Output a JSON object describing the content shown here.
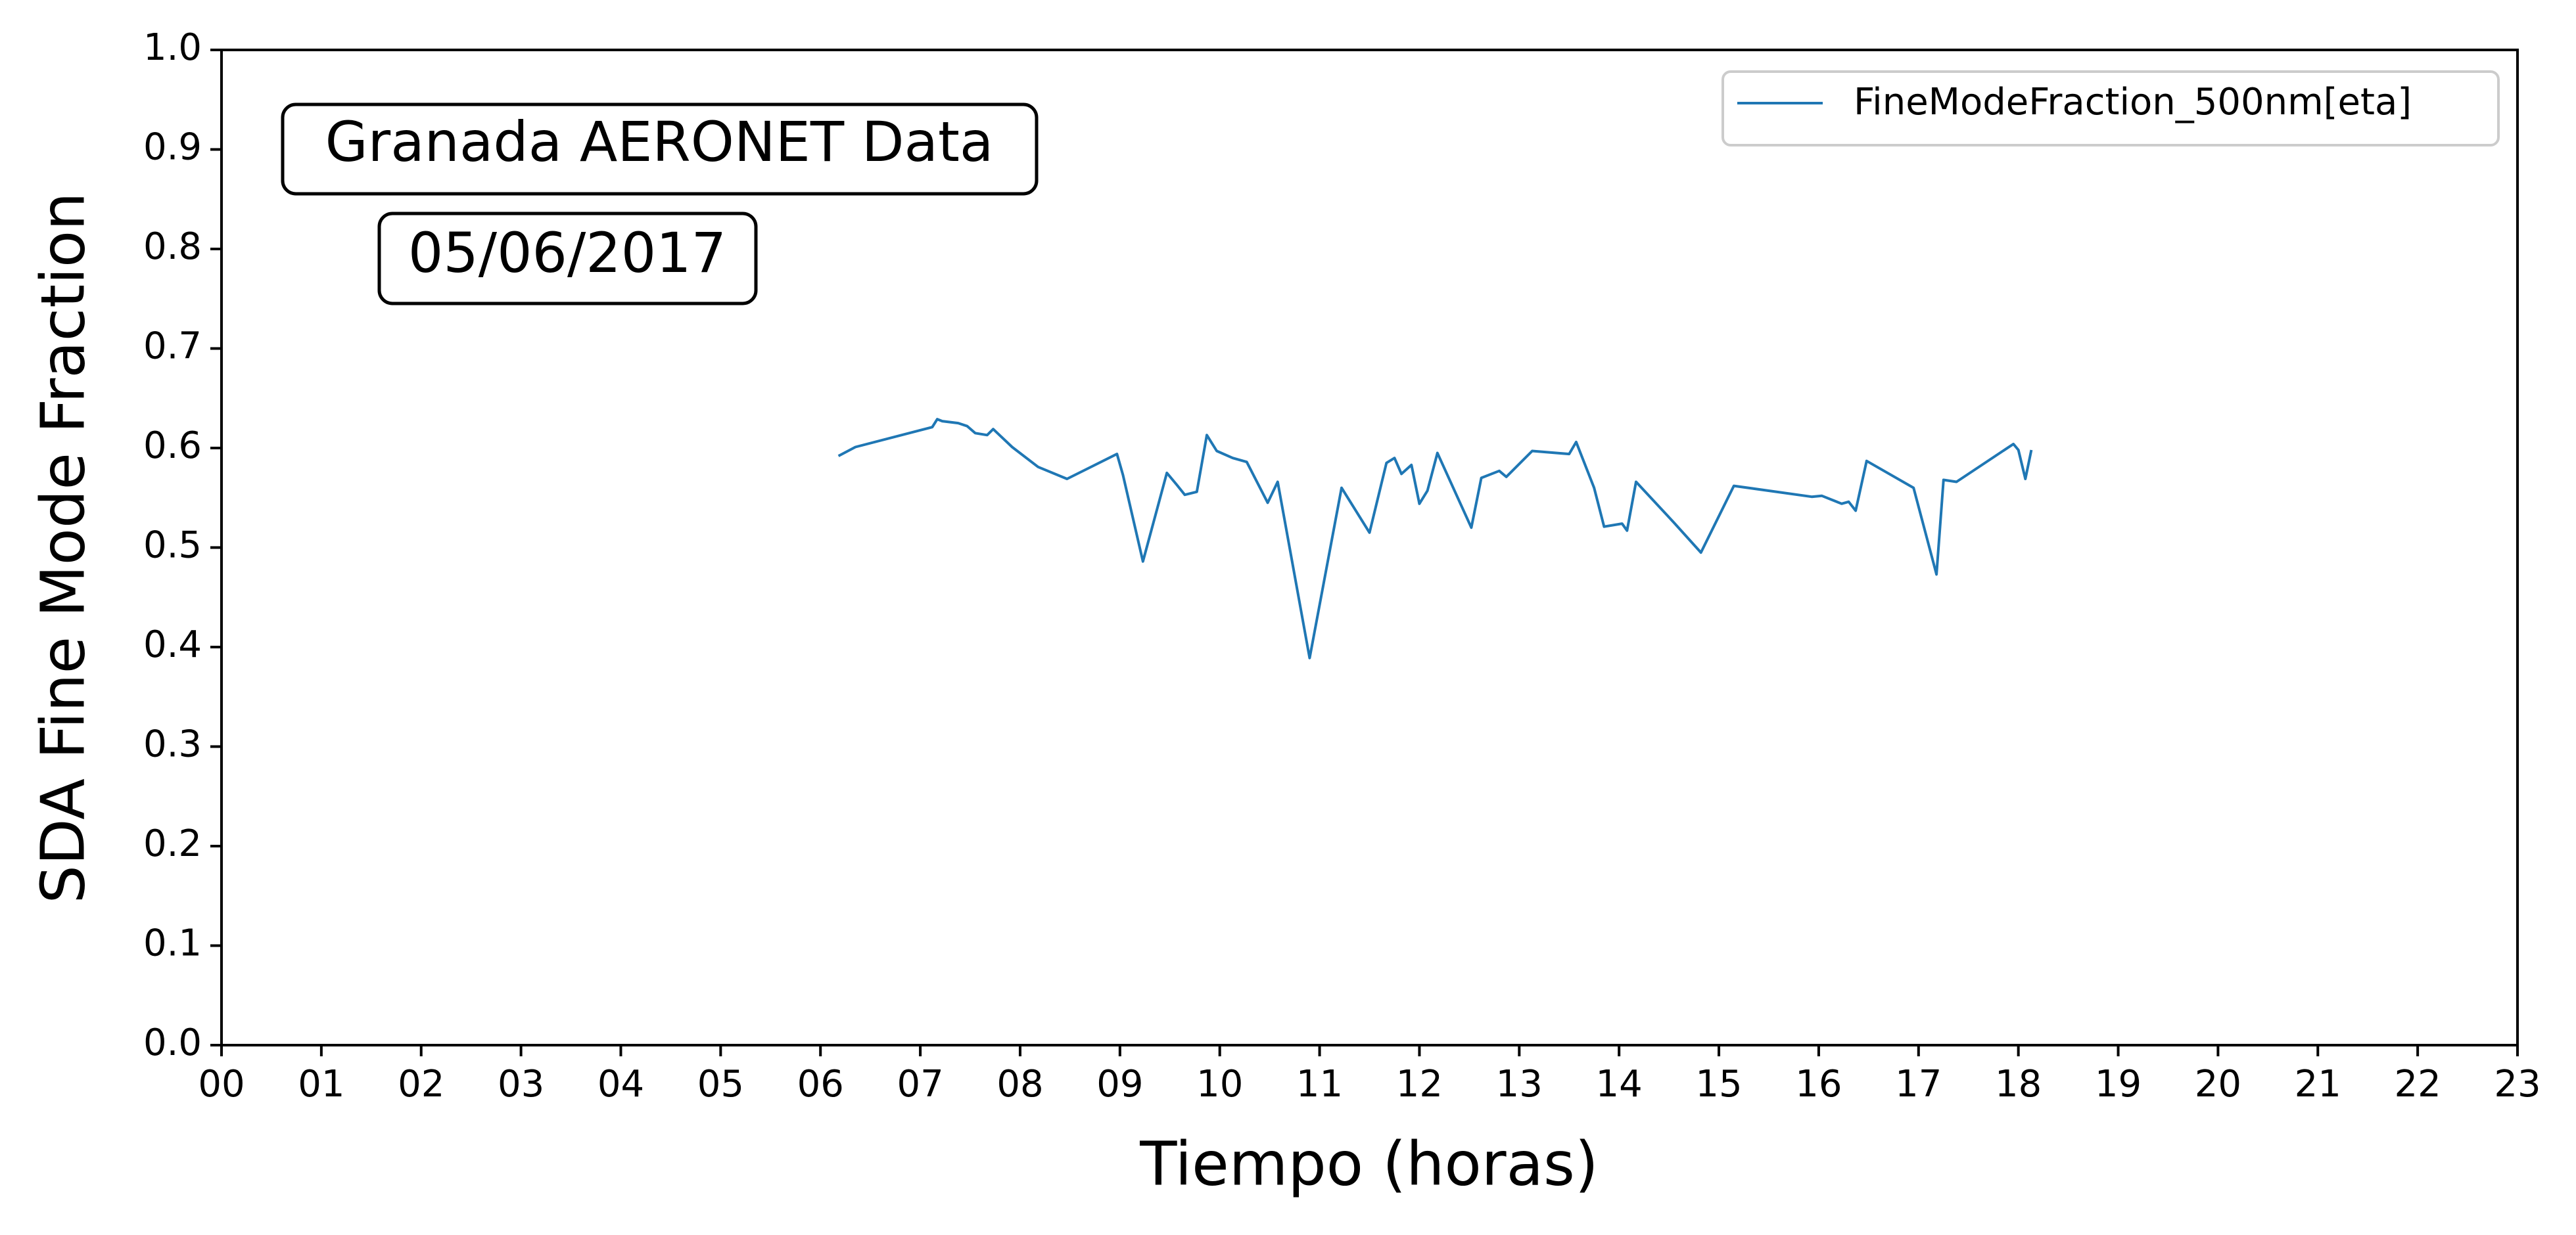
{
  "chart_data": {
    "type": "line",
    "xlabel": "Tiempo (horas)",
    "ylabel": "SDA Fine Mode Fraction",
    "xlim": [
      0,
      23
    ],
    "ylim": [
      0,
      1.0
    ],
    "x_ticks": [
      0,
      1,
      2,
      3,
      4,
      5,
      6,
      7,
      8,
      9,
      10,
      11,
      12,
      13,
      14,
      15,
      16,
      17,
      18,
      19,
      20,
      21,
      22,
      23
    ],
    "x_tick_labels": [
      "00",
      "01",
      "02",
      "03",
      "04",
      "05",
      "06",
      "07",
      "08",
      "09",
      "10",
      "11",
      "12",
      "13",
      "14",
      "15",
      "16",
      "17",
      "18",
      "19",
      "20",
      "21",
      "22",
      "23"
    ],
    "y_ticks": [
      0,
      0.1,
      0.2,
      0.3,
      0.4,
      0.5,
      0.6,
      0.7,
      0.8,
      0.9,
      1.0
    ],
    "y_tick_labels": [
      "0.0",
      "0.1",
      "0.2",
      "0.3",
      "0.4",
      "0.5",
      "0.6",
      "0.7",
      "0.8",
      "0.9",
      "1.0"
    ],
    "grid": false,
    "legend_position": "top-right",
    "annotations": [
      "Granada AERONET Data",
      "05/06/2017"
    ],
    "series": [
      {
        "name": "FineModeFraction_500nm[eta]",
        "color": "#1f77b4",
        "x": [
          6.18,
          6.35,
          7.12,
          7.17,
          7.22,
          7.38,
          7.47,
          7.55,
          7.67,
          7.73,
          7.92,
          8.18,
          8.47,
          8.97,
          9.03,
          9.23,
          9.47,
          9.57,
          9.65,
          9.77,
          9.87,
          9.97,
          10.13,
          10.27,
          10.48,
          10.58,
          10.9,
          11.22,
          11.5,
          11.67,
          11.75,
          11.82,
          11.92,
          12.0,
          12.08,
          12.18,
          12.52,
          12.62,
          12.8,
          12.87,
          13.13,
          13.5,
          13.57,
          13.75,
          13.85,
          14.03,
          14.08,
          14.17,
          14.55,
          14.82,
          15.15,
          15.93,
          16.03,
          16.23,
          16.3,
          16.37,
          16.48,
          16.95,
          17.18,
          17.25,
          17.38,
          17.95,
          18.0,
          18.07,
          18.13
        ],
        "y": [
          0.592,
          0.601,
          0.621,
          0.629,
          0.627,
          0.625,
          0.622,
          0.615,
          0.613,
          0.619,
          0.601,
          0.581,
          0.569,
          0.594,
          0.573,
          0.486,
          0.575,
          0.563,
          0.553,
          0.556,
          0.613,
          0.597,
          0.59,
          0.586,
          0.545,
          0.566,
          0.389,
          0.56,
          0.515,
          0.585,
          0.59,
          0.574,
          0.583,
          0.544,
          0.557,
          0.595,
          0.52,
          0.57,
          0.577,
          0.571,
          0.597,
          0.594,
          0.606,
          0.56,
          0.521,
          0.524,
          0.517,
          0.566,
          0.525,
          0.495,
          0.562,
          0.551,
          0.552,
          0.544,
          0.546,
          0.537,
          0.587,
          0.56,
          0.473,
          0.568,
          0.566,
          0.604,
          0.598,
          0.569,
          0.598
        ]
      }
    ]
  }
}
